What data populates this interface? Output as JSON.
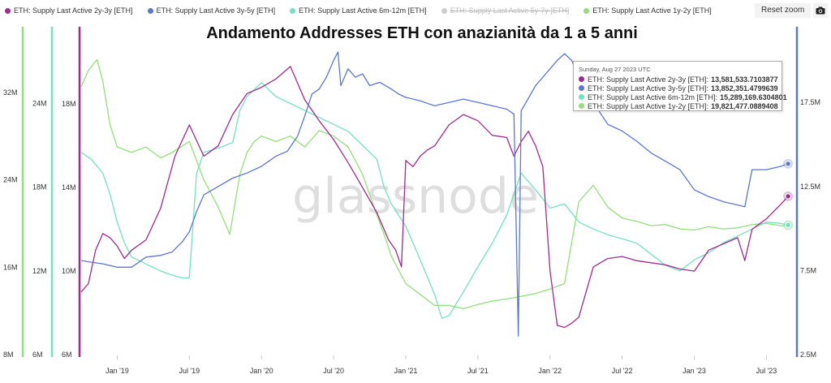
{
  "title": "Andamento Addresses ETH con anazianità da 1 a 5 anni",
  "watermark": "glassnode",
  "reset_zoom_label": "Reset zoom",
  "camera_icon": "camera-icon",
  "legend": [
    {
      "name": "ETH: Supply Last Active 2y-3y [ETH]",
      "color": "#a02a8f",
      "visible": true
    },
    {
      "name": "ETH: Supply Last Active 3y-5y [ETH]",
      "color": "#5b76d6",
      "visible": true
    },
    {
      "name": "ETH: Supply Last Active 6m-12m [ETH]",
      "color": "#72e3c1",
      "visible": true
    },
    {
      "name": "ETH: Supply Last Active 5y-7y [ETH]",
      "color": "#999999",
      "visible": false
    },
    {
      "name": "ETH: Supply Last Active 1y-2y [ETH]",
      "color": "#92e07a",
      "visible": true
    }
  ],
  "tooltip": {
    "date": "Sunday, Aug 27 2023 UTC",
    "rows": [
      {
        "label": "ETH: Supply Last Active 2y-3y [ETH]:",
        "value": "13,581,533.7103877",
        "color": "#a02a8f"
      },
      {
        "label": "ETH: Supply Last Active 3y-5y [ETH]:",
        "value": "13,852,351.4799639",
        "color": "#5b76d6"
      },
      {
        "label": "ETH: Supply Last Active 6m-12m [ETH]:",
        "value": "15,289,169.6304801",
        "color": "#72e3c1"
      },
      {
        "label": "ETH: Supply Last Active 1y-2y [ETH]:",
        "value": "19,821,477.0889408",
        "color": "#92e07a"
      }
    ]
  },
  "chart_data": {
    "type": "line",
    "title": "Andamento Addresses ETH con anazianità da 1 a 5 anni",
    "x_range": [
      2018.75,
      2023.7
    ],
    "x_ticks": [
      {
        "label": "Jan '19",
        "value": 2019.0
      },
      {
        "label": "Jul '19",
        "value": 2019.5
      },
      {
        "label": "Jan '20",
        "value": 2020.0
      },
      {
        "label": "Jul '20",
        "value": 2020.5
      },
      {
        "label": "Jan '21",
        "value": 2021.0
      },
      {
        "label": "Jul '21",
        "value": 2021.5
      },
      {
        "label": "Jan '22",
        "value": 2022.0
      },
      {
        "label": "Jul '22",
        "value": 2022.5
      },
      {
        "label": "Jan '23",
        "value": 2023.0
      },
      {
        "label": "Jul '23",
        "value": 2023.5
      }
    ],
    "axes": [
      {
        "id": "ax1y2y",
        "side": "left",
        "color": "#92e07a",
        "range": [
          8000000,
          38000000
        ],
        "ticks": [
          {
            "label": "8M",
            "value": 8000000
          },
          {
            "label": "16M",
            "value": 16000000
          },
          {
            "label": "24M",
            "value": 24000000
          },
          {
            "label": "32M",
            "value": 32000000
          }
        ]
      },
      {
        "id": "ax6m12m",
        "side": "left",
        "color": "#72e3c1",
        "range": [
          6000000,
          29500000
        ],
        "ticks": [
          {
            "label": "6M",
            "value": 6000000
          },
          {
            "label": "12M",
            "value": 12000000
          },
          {
            "label": "18M",
            "value": 18000000
          },
          {
            "label": "24M",
            "value": 24000000
          }
        ]
      },
      {
        "id": "ax2y3y",
        "side": "left",
        "color": "#a02a8f",
        "range": [
          6000000,
          21700000
        ],
        "ticks": [
          {
            "label": "6M",
            "value": 6000000
          },
          {
            "label": "10M",
            "value": 10000000
          },
          {
            "label": "14M",
            "value": 14000000
          },
          {
            "label": "18M",
            "value": 18000000
          }
        ]
      },
      {
        "id": "ax3y5y",
        "side": "right",
        "color": "#5b76d6",
        "range": [
          2500000,
          22000000
        ],
        "ticks": [
          {
            "label": "2.5M",
            "value": 2500000
          },
          {
            "label": "7.5M",
            "value": 7500000
          },
          {
            "label": "12.5M",
            "value": 12500000
          },
          {
            "label": "17.5M",
            "value": 17500000
          }
        ]
      }
    ],
    "series": [
      {
        "name": "ETH: Supply Last Active 1y-2y [ETH]",
        "axis": "ax1y2y",
        "color": "#92e07a",
        "x": [
          2018.75,
          2018.8,
          2018.86,
          2018.9,
          2018.95,
          2019.0,
          2019.1,
          2019.2,
          2019.3,
          2019.38,
          2019.5,
          2019.6,
          2019.7,
          2019.78,
          2019.85,
          2019.9,
          2019.95,
          2020.0,
          2020.1,
          2020.2,
          2020.3,
          2020.4,
          2020.5,
          2020.6,
          2020.7,
          2020.78,
          2020.85,
          2020.9,
          2021.0,
          2021.1,
          2021.2,
          2021.3,
          2021.4,
          2021.5,
          2021.6,
          2021.75,
          2021.9,
          2022.0,
          2022.1,
          2022.2,
          2022.3,
          2022.4,
          2022.5,
          2022.6,
          2022.7,
          2022.8,
          2022.9,
          2023.0,
          2023.1,
          2023.2,
          2023.3,
          2023.4,
          2023.5,
          2023.6,
          2023.65
        ],
        "y": [
          32500000,
          34000000,
          35000000,
          33000000,
          29000000,
          27000000,
          26500000,
          27000000,
          26000000,
          26500000,
          27500000,
          24000000,
          21500000,
          19000000,
          24500000,
          26500000,
          27500000,
          28000000,
          27500000,
          28000000,
          27000000,
          28500000,
          28000000,
          27000000,
          24500000,
          21500000,
          19000000,
          17000000,
          14500000,
          13500000,
          12500000,
          12500000,
          12200000,
          12600000,
          12900000,
          13200000,
          13600000,
          14000000,
          14500000,
          22000000,
          23500000,
          21500000,
          20500000,
          20200000,
          19800000,
          19900000,
          19500000,
          19400000,
          19700000,
          19500000,
          19600000,
          19900000,
          20000000,
          19800000,
          19821477
        ]
      },
      {
        "name": "ETH: Supply Last Active 6m-12m [ETH]",
        "axis": "ax6m12m",
        "color": "#72e3c1",
        "x": [
          2018.75,
          2018.82,
          2018.9,
          2018.95,
          2019.0,
          2019.05,
          2019.1,
          2019.2,
          2019.3,
          2019.38,
          2019.45,
          2019.5,
          2019.55,
          2019.6,
          2019.7,
          2019.8,
          2019.85,
          2019.9,
          2020.0,
          2020.1,
          2020.2,
          2020.3,
          2020.4,
          2020.5,
          2020.6,
          2020.7,
          2020.8,
          2020.85,
          2020.9,
          2021.0,
          2021.1,
          2021.2,
          2021.25,
          2021.3,
          2021.4,
          2021.5,
          2021.6,
          2021.7,
          2021.8,
          2021.9,
          2022.0,
          2022.1,
          2022.2,
          2022.3,
          2022.4,
          2022.5,
          2022.6,
          2022.7,
          2022.8,
          2022.9,
          2023.0,
          2023.1,
          2023.2,
          2023.3,
          2023.4,
          2023.5,
          2023.6,
          2023.65
        ],
        "y": [
          20500000,
          20000000,
          19000000,
          17500000,
          15500000,
          14000000,
          13000000,
          12500000,
          12000000,
          11700000,
          11500000,
          11500000,
          19000000,
          20500000,
          20800000,
          21200000,
          23500000,
          24500000,
          25500000,
          24500000,
          24000000,
          23500000,
          23000000,
          22500000,
          22000000,
          21000000,
          20000000,
          18000000,
          16800000,
          15200000,
          12800000,
          10300000,
          8600000,
          8800000,
          10500000,
          12300000,
          14000000,
          16000000,
          19000000,
          17800000,
          16500000,
          16800000,
          15500000,
          15000000,
          14600000,
          14300000,
          14000000,
          13200000,
          12400000,
          12000000,
          12800000,
          13300000,
          14000000,
          14500000,
          15000000,
          15500000,
          15400000,
          15289170
        ]
      },
      {
        "name": "ETH: Supply Last Active 2y-3y [ETH]",
        "axis": "ax2y3y",
        "color": "#a02a8f",
        "x": [
          2018.75,
          2018.8,
          2018.85,
          2018.9,
          2018.95,
          2019.0,
          2019.05,
          2019.1,
          2019.2,
          2019.3,
          2019.4,
          2019.5,
          2019.6,
          2019.7,
          2019.8,
          2019.9,
          2020.0,
          2020.1,
          2020.15,
          2020.2,
          2020.3,
          2020.4,
          2020.5,
          2020.6,
          2020.7,
          2020.8,
          2020.88,
          2020.93,
          2020.97,
          2021.0,
          2021.05,
          2021.1,
          2021.15,
          2021.2,
          2021.3,
          2021.4,
          2021.5,
          2021.6,
          2021.7,
          2021.75,
          2021.8,
          2021.85,
          2021.9,
          2021.95,
          2022.0,
          2022.05,
          2022.1,
          2022.15,
          2022.2,
          2022.3,
          2022.4,
          2022.5,
          2022.6,
          2022.7,
          2022.8,
          2022.9,
          2023.0,
          2023.1,
          2023.2,
          2023.3,
          2023.35,
          2023.4,
          2023.5,
          2023.6,
          2023.65
        ],
        "y": [
          9000000,
          9400000,
          11000000,
          11800000,
          11600000,
          11200000,
          10600000,
          11000000,
          11500000,
          13000000,
          15500000,
          17000000,
          15500000,
          16000000,
          17500000,
          18500000,
          18800000,
          19200000,
          19500000,
          19800000,
          18200000,
          17200000,
          16300000,
          15200000,
          14000000,
          12800000,
          11500000,
          11000000,
          10200000,
          15300000,
          15000000,
          15500000,
          15800000,
          16000000,
          17000000,
          17500000,
          17200000,
          16500000,
          16400000,
          15500000,
          16200000,
          16700000,
          16000000,
          15000000,
          10000000,
          7400000,
          7300000,
          7500000,
          7800000,
          10200000,
          10600000,
          10700000,
          10500000,
          10400000,
          10300000,
          10100000,
          10000000,
          11000000,
          11300000,
          11600000,
          10500000,
          12000000,
          12500000,
          13200000,
          13581534
        ]
      },
      {
        "name": "ETH: Supply Last Active 3y-5y [ETH]",
        "axis": "ax3y5y",
        "color": "#5b76d6",
        "x": [
          2018.75,
          2018.82,
          2018.9,
          2018.95,
          2019.0,
          2019.1,
          2019.2,
          2019.3,
          2019.38,
          2019.45,
          2019.5,
          2019.55,
          2019.6,
          2019.7,
          2019.8,
          2019.9,
          2020.0,
          2020.05,
          2020.1,
          2020.18,
          2020.25,
          2020.3,
          2020.35,
          2020.4,
          2020.45,
          2020.5,
          2020.53,
          2020.55,
          2020.6,
          2020.65,
          2020.7,
          2020.75,
          2020.82,
          2020.9,
          2020.95,
          2021.0,
          2021.1,
          2021.2,
          2021.3,
          2021.4,
          2021.5,
          2021.6,
          2021.7,
          2021.75,
          2021.78,
          2021.8,
          2021.9,
          2022.0,
          2022.05,
          2022.1,
          2022.15,
          2022.2,
          2022.3,
          2022.4,
          2022.5,
          2022.6,
          2022.7,
          2022.8,
          2022.9,
          2023.0,
          2023.1,
          2023.2,
          2023.3,
          2023.35,
          2023.4,
          2023.5,
          2023.6,
          2023.65
        ],
        "y": [
          8100000,
          8000000,
          7900000,
          7800000,
          7700000,
          7700000,
          8300000,
          8400000,
          8600000,
          9200000,
          9800000,
          11000000,
          12000000,
          12500000,
          13000000,
          13300000,
          13700000,
          14000000,
          14300000,
          14600000,
          15500000,
          16700000,
          18000000,
          18300000,
          19000000,
          20000000,
          20500000,
          18500000,
          19500000,
          19000000,
          19200000,
          18500000,
          18700000,
          18300000,
          18000000,
          17800000,
          17600000,
          17300000,
          17500000,
          17700000,
          17500000,
          17300000,
          17100000,
          16800000,
          3600000,
          17000000,
          18500000,
          19500000,
          20000000,
          20400000,
          20000000,
          19000000,
          17500000,
          16200000,
          15800000,
          15200000,
          14500000,
          14000000,
          13500000,
          12300000,
          11900000,
          11600000,
          11400000,
          11300000,
          13500000,
          13500000,
          13700000,
          13852351
        ]
      }
    ]
  }
}
